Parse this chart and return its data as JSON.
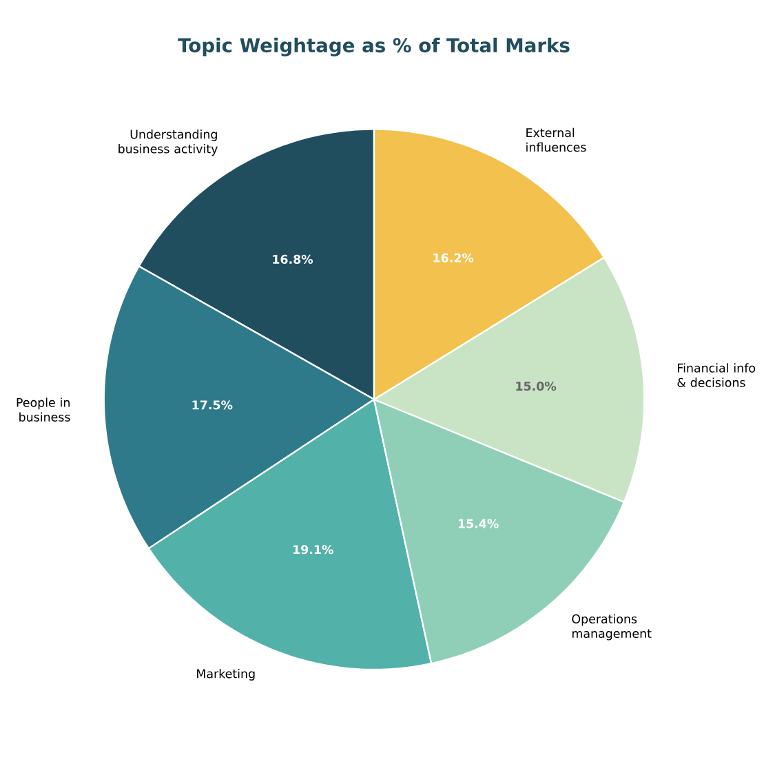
{
  "chart_data": {
    "type": "pie",
    "title": "Topic Weightage as % of Total Marks",
    "categories": [
      "Understanding business activity",
      "People in business",
      "Marketing",
      "Operations management",
      "Financial info & decisions",
      "External influences"
    ],
    "values": [
      16.8,
      17.5,
      19.1,
      15.4,
      15.0,
      16.2
    ],
    "value_labels": [
      "16.8%",
      "17.5%",
      "19.1%",
      "15.4%",
      "15.0%",
      "16.2%"
    ],
    "colors": [
      "#214e5f",
      "#2e7a8a",
      "#52b2a9",
      "#8fcfb8",
      "#c9e4c5",
      "#f2c14e"
    ]
  }
}
